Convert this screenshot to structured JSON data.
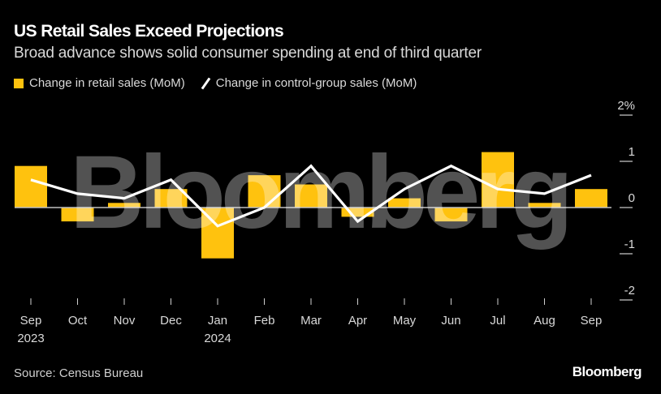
{
  "header": {
    "title": "US Retail Sales Exceed Projections",
    "subtitle": "Broad advance shows solid consumer spending at end of third quarter"
  },
  "legend": [
    {
      "label": "Change in retail sales (MoM)",
      "type": "bar",
      "color": "#ffc20e"
    },
    {
      "label": "Change in control-group sales (MoM)",
      "type": "line",
      "color": "#ffffff"
    }
  ],
  "footer": {
    "source": "Source: Census Bureau",
    "brand": "Bloomberg"
  },
  "watermark": "Bloomberg",
  "chart_data": {
    "type": "bar",
    "title": "US Retail Sales Exceed Projections",
    "subtitle": "Broad advance shows solid consumer spending at end of third quarter",
    "categories": [
      "Sep",
      "Oct",
      "Nov",
      "Dec",
      "Jan",
      "Feb",
      "Mar",
      "Apr",
      "May",
      "Jun",
      "Jul",
      "Aug",
      "Sep"
    ],
    "category_sublabels": [
      "2023",
      "",
      "",
      "",
      "2024",
      "",
      "",
      "",
      "",
      "",
      "",
      "",
      ""
    ],
    "series": [
      {
        "name": "Change in retail sales (MoM)",
        "type": "bar",
        "color": "#ffc20e",
        "values": [
          0.9,
          -0.3,
          0.1,
          0.4,
          -1.1,
          0.7,
          0.5,
          -0.2,
          0.2,
          -0.3,
          1.2,
          0.1,
          0.4
        ]
      },
      {
        "name": "Change in control-group sales (MoM)",
        "type": "line",
        "color": "#ffffff",
        "values": [
          0.6,
          0.3,
          0.2,
          0.6,
          -0.4,
          0.0,
          0.9,
          -0.3,
          0.4,
          0.9,
          0.4,
          0.3,
          0.7
        ]
      }
    ],
    "y_ticks": [
      "2%",
      "1",
      "0",
      "-1",
      "-2"
    ],
    "y_tick_values": [
      2,
      1,
      0,
      -1,
      -2
    ],
    "ylim": [
      -2,
      2
    ],
    "xlabel": "",
    "ylabel": "",
    "y_axis_position": "right",
    "grid": false,
    "legend_position": "top-left",
    "zero_line": true
  }
}
